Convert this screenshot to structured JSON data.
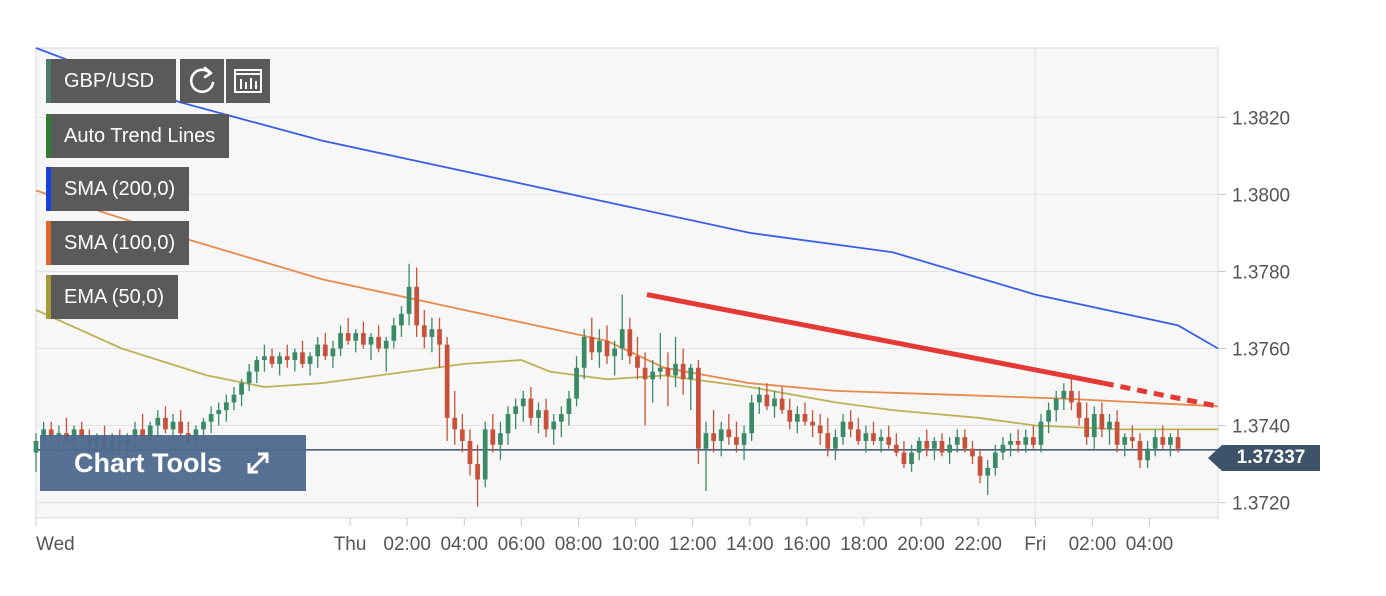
{
  "toolbar": {
    "symbol": "GBP/USD",
    "refresh_icon": "refresh-icon",
    "chart_type_icon": "bar-chart-icon"
  },
  "legend": [
    {
      "label": "Auto Trend Lines",
      "color": "#2e7d32"
    },
    {
      "label": "SMA (200,0)",
      "color": "#1a3fe0"
    },
    {
      "label": "SMA (100,0)",
      "color": "#e0662a"
    },
    {
      "label": "EMA (50,0)",
      "color": "#a49a3a"
    }
  ],
  "chart_tools": {
    "label": "Chart Tools",
    "icon": "expand-icon"
  },
  "current_price": "1.37337",
  "chart_data": {
    "type": "candlestick",
    "title": "",
    "ylim": [
      1.3716,
      1.3838
    ],
    "y_ticks": [
      "1.3720",
      "1.3740",
      "1.3760",
      "1.3780",
      "1.3800",
      "1.3820"
    ],
    "x_ticks": [
      {
        "label": "Wed",
        "t": 0
      },
      {
        "label": "Thu",
        "t": 11
      },
      {
        "label": "02:00",
        "t": 13
      },
      {
        "label": "04:00",
        "t": 15
      },
      {
        "label": "06:00",
        "t": 17
      },
      {
        "label": "08:00",
        "t": 19
      },
      {
        "label": "10:00",
        "t": 21
      },
      {
        "label": "12:00",
        "t": 23
      },
      {
        "label": "14:00",
        "t": 25
      },
      {
        "label": "16:00",
        "t": 27
      },
      {
        "label": "18:00",
        "t": 29
      },
      {
        "label": "20:00",
        "t": 31
      },
      {
        "label": "22:00",
        "t": 33
      },
      {
        "label": "Fri",
        "t": 35
      },
      {
        "label": "02:00",
        "t": 37
      },
      {
        "label": "04:00",
        "t": 39
      }
    ],
    "candles": [
      [
        1.3733,
        1.3738,
        1.3728,
        1.3736
      ],
      [
        1.3736,
        1.3741,
        1.3733,
        1.3739
      ],
      [
        1.3739,
        1.3741,
        1.3735,
        1.3737
      ],
      [
        1.3737,
        1.374,
        1.3734,
        1.3738
      ],
      [
        1.3738,
        1.3742,
        1.3735,
        1.3736
      ],
      [
        1.3736,
        1.374,
        1.3733,
        1.3739
      ],
      [
        1.3739,
        1.3741,
        1.3736,
        1.3737
      ],
      [
        1.3737,
        1.3739,
        1.3733,
        1.3735
      ],
      [
        1.3735,
        1.3738,
        1.3731,
        1.3737
      ],
      [
        1.3737,
        1.374,
        1.3733,
        1.3734
      ],
      [
        1.3734,
        1.3738,
        1.3731,
        1.3736
      ],
      [
        1.3736,
        1.3739,
        1.3733,
        1.3735
      ],
      [
        1.3735,
        1.3738,
        1.3731,
        1.3737
      ],
      [
        1.3737,
        1.3741,
        1.3734,
        1.3739
      ],
      [
        1.3739,
        1.3743,
        1.3736,
        1.3737
      ],
      [
        1.3737,
        1.3741,
        1.3735,
        1.374
      ],
      [
        1.374,
        1.3744,
        1.3737,
        1.3742
      ],
      [
        1.3742,
        1.3745,
        1.3738,
        1.3739
      ],
      [
        1.3739,
        1.3743,
        1.3736,
        1.3741
      ],
      [
        1.3741,
        1.3744,
        1.3737,
        1.3738
      ],
      [
        1.3738,
        1.3741,
        1.3735,
        1.3736
      ],
      [
        1.3736,
        1.374,
        1.3733,
        1.3739
      ],
      [
        1.3739,
        1.3742,
        1.3736,
        1.3741
      ],
      [
        1.3741,
        1.3745,
        1.3738,
        1.3743
      ],
      [
        1.3743,
        1.3746,
        1.374,
        1.3744
      ],
      [
        1.3744,
        1.3748,
        1.3741,
        1.3746
      ],
      [
        1.3746,
        1.375,
        1.3744,
        1.3748
      ],
      [
        1.3748,
        1.3752,
        1.3745,
        1.3751
      ],
      [
        1.3751,
        1.3756,
        1.3749,
        1.3754
      ],
      [
        1.3754,
        1.3758,
        1.3751,
        1.3757
      ],
      [
        1.3757,
        1.3761,
        1.3754,
        1.3758
      ],
      [
        1.3758,
        1.376,
        1.3755,
        1.3756
      ],
      [
        1.3756,
        1.3759,
        1.3753,
        1.3758
      ],
      [
        1.3758,
        1.3761,
        1.3755,
        1.3757
      ],
      [
        1.3757,
        1.376,
        1.3754,
        1.3759
      ],
      [
        1.3759,
        1.3762,
        1.3755,
        1.3756
      ],
      [
        1.3756,
        1.3759,
        1.3753,
        1.3758
      ],
      [
        1.3758,
        1.3763,
        1.3755,
        1.3761
      ],
      [
        1.3761,
        1.3764,
        1.3757,
        1.3758
      ],
      [
        1.3758,
        1.3762,
        1.3755,
        1.376
      ],
      [
        1.376,
        1.3766,
        1.3758,
        1.3764
      ],
      [
        1.3764,
        1.3768,
        1.3761,
        1.3762
      ],
      [
        1.3762,
        1.3765,
        1.3759,
        1.3764
      ],
      [
        1.3764,
        1.3767,
        1.376,
        1.3761
      ],
      [
        1.3761,
        1.3764,
        1.3757,
        1.3763
      ],
      [
        1.3763,
        1.3766,
        1.3759,
        1.376
      ],
      [
        1.376,
        1.3763,
        1.3754,
        1.3762
      ],
      [
        1.3762,
        1.3768,
        1.376,
        1.3766
      ],
      [
        1.3766,
        1.3771,
        1.3763,
        1.3769
      ],
      [
        1.3769,
        1.3782,
        1.3766,
        1.3776
      ],
      [
        1.3776,
        1.3781,
        1.3763,
        1.3766
      ],
      [
        1.3766,
        1.377,
        1.376,
        1.3763
      ],
      [
        1.3763,
        1.3768,
        1.3759,
        1.3765
      ],
      [
        1.3765,
        1.3768,
        1.3755,
        1.3761
      ],
      [
        1.3761,
        1.3763,
        1.3736,
        1.3742
      ],
      [
        1.3742,
        1.3749,
        1.3735,
        1.3739
      ],
      [
        1.3739,
        1.3743,
        1.3733,
        1.3736
      ],
      [
        1.3736,
        1.3739,
        1.3727,
        1.373
      ],
      [
        1.373,
        1.3735,
        1.3719,
        1.3726
      ],
      [
        1.3726,
        1.3741,
        1.3724,
        1.3739
      ],
      [
        1.3739,
        1.3743,
        1.3733,
        1.3735
      ],
      [
        1.3735,
        1.3741,
        1.3731,
        1.3738
      ],
      [
        1.3738,
        1.3745,
        1.3735,
        1.3743
      ],
      [
        1.3743,
        1.3747,
        1.3739,
        1.3745
      ],
      [
        1.3745,
        1.3749,
        1.3741,
        1.3747
      ],
      [
        1.3747,
        1.375,
        1.374,
        1.3742
      ],
      [
        1.3742,
        1.3746,
        1.3738,
        1.3744
      ],
      [
        1.3744,
        1.3747,
        1.3737,
        1.3739
      ],
      [
        1.3739,
        1.3743,
        1.3735,
        1.3741
      ],
      [
        1.3741,
        1.3745,
        1.3737,
        1.3743
      ],
      [
        1.3743,
        1.3749,
        1.374,
        1.3747
      ],
      [
        1.3747,
        1.3758,
        1.3745,
        1.3755
      ],
      [
        1.3755,
        1.3765,
        1.3752,
        1.3763
      ],
      [
        1.3763,
        1.3768,
        1.3757,
        1.3759
      ],
      [
        1.3759,
        1.3765,
        1.3755,
        1.3762
      ],
      [
        1.3762,
        1.3766,
        1.3756,
        1.3758
      ],
      [
        1.3758,
        1.3762,
        1.3753,
        1.376
      ],
      [
        1.376,
        1.3774,
        1.3757,
        1.3765
      ],
      [
        1.3765,
        1.3768,
        1.3756,
        1.3758
      ],
      [
        1.3758,
        1.3763,
        1.3752,
        1.3755
      ],
      [
        1.3755,
        1.3759,
        1.374,
        1.3752
      ],
      [
        1.3752,
        1.3757,
        1.3746,
        1.3754
      ],
      [
        1.3754,
        1.3764,
        1.3752,
        1.3755
      ],
      [
        1.3755,
        1.3759,
        1.3745,
        1.3753
      ],
      [
        1.3753,
        1.3763,
        1.375,
        1.3756
      ],
      [
        1.3756,
        1.376,
        1.3748,
        1.3752
      ],
      [
        1.3752,
        1.3756,
        1.3744,
        1.3755
      ],
      [
        1.3755,
        1.3757,
        1.373,
        1.3734
      ],
      [
        1.3734,
        1.3741,
        1.3723,
        1.3738
      ],
      [
        1.3738,
        1.3744,
        1.3733,
        1.3736
      ],
      [
        1.3736,
        1.3741,
        1.3732,
        1.3739
      ],
      [
        1.3739,
        1.3743,
        1.3735,
        1.3737
      ],
      [
        1.3737,
        1.3741,
        1.3733,
        1.3735
      ],
      [
        1.3735,
        1.374,
        1.3731,
        1.3738
      ],
      [
        1.3738,
        1.3748,
        1.3736,
        1.3746
      ],
      [
        1.3746,
        1.375,
        1.3743,
        1.3748
      ],
      [
        1.3748,
        1.3751,
        1.3744,
        1.3745
      ],
      [
        1.3745,
        1.3749,
        1.3742,
        1.3747
      ],
      [
        1.3747,
        1.375,
        1.3743,
        1.3744
      ],
      [
        1.3744,
        1.3747,
        1.3739,
        1.3741
      ],
      [
        1.3741,
        1.3745,
        1.3738,
        1.3743
      ],
      [
        1.3743,
        1.3746,
        1.374,
        1.3741
      ],
      [
        1.3741,
        1.3744,
        1.3737,
        1.374
      ],
      [
        1.374,
        1.3743,
        1.3735,
        1.3738
      ],
      [
        1.3738,
        1.3742,
        1.3732,
        1.3734
      ],
      [
        1.3734,
        1.3739,
        1.3731,
        1.3737
      ],
      [
        1.3737,
        1.3743,
        1.3735,
        1.3741
      ],
      [
        1.3741,
        1.3744,
        1.3737,
        1.3739
      ],
      [
        1.3739,
        1.3742,
        1.3735,
        1.3736
      ],
      [
        1.3736,
        1.374,
        1.3733,
        1.3738
      ],
      [
        1.3738,
        1.3741,
        1.3735,
        1.3736
      ],
      [
        1.3736,
        1.3739,
        1.3733,
        1.3737
      ],
      [
        1.3737,
        1.374,
        1.3734,
        1.3735
      ],
      [
        1.3735,
        1.3738,
        1.3732,
        1.3733
      ],
      [
        1.3733,
        1.3736,
        1.3729,
        1.373
      ],
      [
        1.373,
        1.3735,
        1.3728,
        1.3733
      ],
      [
        1.3733,
        1.3737,
        1.3731,
        1.3736
      ],
      [
        1.3736,
        1.3739,
        1.3732,
        1.3734
      ],
      [
        1.3734,
        1.3737,
        1.3731,
        1.3736
      ],
      [
        1.3736,
        1.3738,
        1.3732,
        1.3733
      ],
      [
        1.3733,
        1.3737,
        1.373,
        1.3735
      ],
      [
        1.3735,
        1.3739,
        1.3733,
        1.3737
      ],
      [
        1.3737,
        1.3739,
        1.3733,
        1.3734
      ],
      [
        1.3734,
        1.3736,
        1.373,
        1.3732
      ],
      [
        1.3732,
        1.3734,
        1.3725,
        1.3727
      ],
      [
        1.3727,
        1.3731,
        1.3722,
        1.3729
      ],
      [
        1.3729,
        1.3735,
        1.3727,
        1.3733
      ],
      [
        1.3733,
        1.3737,
        1.3731,
        1.3735
      ],
      [
        1.3735,
        1.3738,
        1.3732,
        1.3736
      ],
      [
        1.3736,
        1.3739,
        1.3733,
        1.3735
      ],
      [
        1.3735,
        1.3739,
        1.3733,
        1.3737
      ],
      [
        1.3737,
        1.374,
        1.3734,
        1.3735
      ],
      [
        1.3735,
        1.3743,
        1.3733,
        1.3741
      ],
      [
        1.3741,
        1.3746,
        1.3738,
        1.3744
      ],
      [
        1.3744,
        1.3749,
        1.3741,
        1.3747
      ],
      [
        1.3747,
        1.3751,
        1.3744,
        1.3749
      ],
      [
        1.3749,
        1.3752,
        1.3744,
        1.3746
      ],
      [
        1.3746,
        1.3749,
        1.374,
        1.3742
      ],
      [
        1.3742,
        1.3746,
        1.3735,
        1.3737
      ],
      [
        1.3737,
        1.3745,
        1.3734,
        1.3743
      ],
      [
        1.3743,
        1.3746,
        1.3737,
        1.3739
      ],
      [
        1.3739,
        1.3743,
        1.3735,
        1.3741
      ],
      [
        1.3741,
        1.3744,
        1.3733,
        1.3735
      ],
      [
        1.3735,
        1.3738,
        1.3732,
        1.3737
      ],
      [
        1.3737,
        1.374,
        1.3734,
        1.3736
      ],
      [
        1.3736,
        1.3738,
        1.3729,
        1.3731
      ],
      [
        1.3731,
        1.3736,
        1.3729,
        1.3734
      ],
      [
        1.3734,
        1.3739,
        1.3732,
        1.3737
      ],
      [
        1.3737,
        1.374,
        1.3734,
        1.3735
      ],
      [
        1.3735,
        1.3738,
        1.3732,
        1.3737
      ],
      [
        1.3737,
        1.3739,
        1.3733,
        1.3734
      ]
    ],
    "series": [
      {
        "name": "SMA (200,0)",
        "color": "#3b5ee8",
        "points": [
          [
            0,
            1.3838
          ],
          [
            5,
            1.3824
          ],
          [
            10,
            1.3814
          ],
          [
            15,
            1.3806
          ],
          [
            20,
            1.3798
          ],
          [
            25,
            1.379
          ],
          [
            30,
            1.3785
          ],
          [
            35,
            1.3774
          ],
          [
            40,
            1.3766
          ],
          [
            41.4,
            1.376
          ]
        ]
      },
      {
        "name": "SMA (100,0)",
        "color": "#e88a4a",
        "points": [
          [
            0,
            1.3801
          ],
          [
            5,
            1.3789
          ],
          [
            10,
            1.3778
          ],
          [
            15,
            1.377
          ],
          [
            20,
            1.3762
          ],
          [
            22,
            1.3755
          ],
          [
            25,
            1.3751
          ],
          [
            28,
            1.3749
          ],
          [
            32,
            1.3748
          ],
          [
            36,
            1.3747
          ],
          [
            41.4,
            1.3745
          ]
        ]
      },
      {
        "name": "EMA (50,0)",
        "color": "#bdb255",
        "points": [
          [
            0,
            1.377
          ],
          [
            3,
            1.376
          ],
          [
            6,
            1.3753
          ],
          [
            8,
            1.375
          ],
          [
            10,
            1.3751
          ],
          [
            13,
            1.3754
          ],
          [
            15,
            1.3756
          ],
          [
            17,
            1.3757
          ],
          [
            18,
            1.3754
          ],
          [
            20,
            1.3752
          ],
          [
            22,
            1.3753
          ],
          [
            25,
            1.375
          ],
          [
            28,
            1.3746
          ],
          [
            30,
            1.3744
          ],
          [
            33,
            1.3742
          ],
          [
            35,
            1.374
          ],
          [
            38,
            1.3739
          ],
          [
            41.4,
            1.3739
          ]
        ]
      }
    ],
    "trend_line": {
      "color": "#e53935",
      "solid": [
        [
          21.4,
          1.3774
        ],
        [
          37.4,
          1.3751
        ]
      ],
      "dashed": [
        [
          37.4,
          1.3751
        ],
        [
          41.4,
          1.3745
        ]
      ]
    },
    "current_price_line": 1.37337,
    "up_color": "#3a8a68",
    "down_color": "#c7513a",
    "grid": true
  }
}
